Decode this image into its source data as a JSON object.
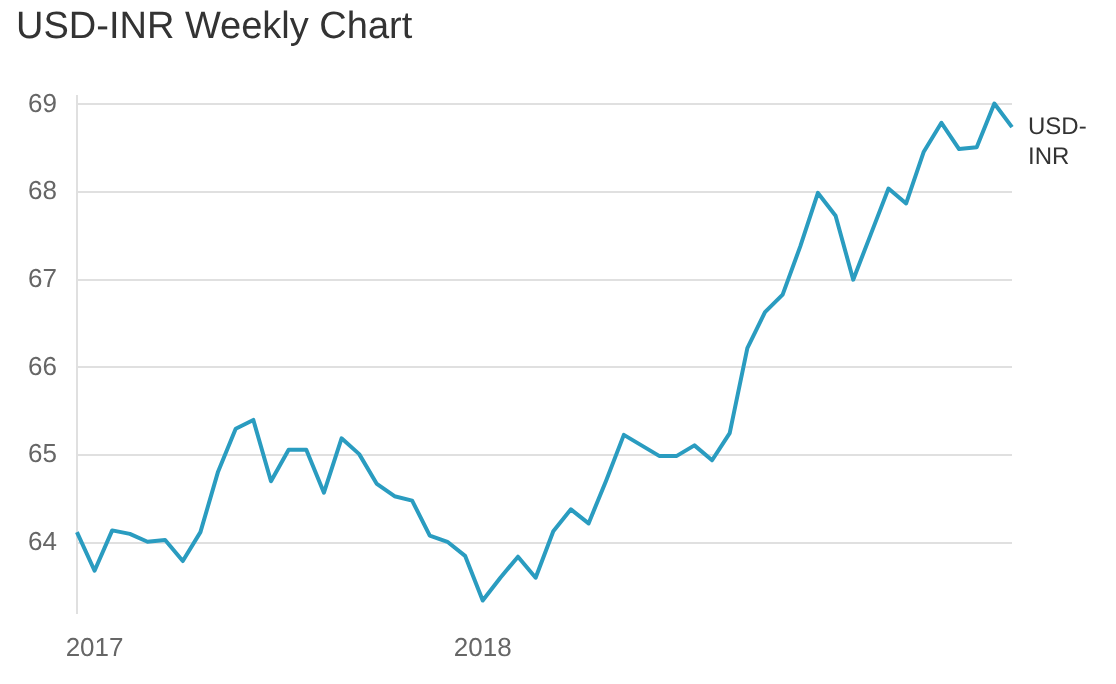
{
  "chart_data": {
    "type": "line",
    "title": "USD-INR Weekly Chart",
    "categories": [
      null,
      "2017",
      null,
      null,
      null,
      null,
      null,
      null,
      null,
      null,
      null,
      null,
      null,
      null,
      null,
      null,
      null,
      null,
      null,
      null,
      null,
      null,
      null,
      "2018",
      null,
      null,
      null,
      null,
      null,
      null,
      null,
      null,
      null,
      null,
      null,
      null,
      null,
      null,
      null,
      null,
      null,
      null,
      null,
      null,
      null,
      null,
      null,
      null,
      null,
      null,
      null,
      null,
      null,
      null
    ],
    "series": [
      {
        "name": "USD-INR",
        "color": "#2a9cc0",
        "values": [
          64.12,
          63.68,
          64.14,
          64.1,
          64.01,
          64.03,
          63.79,
          64.12,
          64.81,
          65.3,
          65.4,
          64.7,
          65.06,
          65.06,
          64.57,
          65.19,
          65.01,
          64.67,
          64.53,
          64.48,
          64.08,
          64.01,
          63.85,
          63.34,
          63.6,
          63.84,
          63.6,
          64.13,
          64.38,
          64.22,
          64.71,
          65.23,
          65.11,
          64.99,
          64.99,
          65.11,
          64.94,
          65.25,
          66.22,
          66.63,
          66.83,
          67.38,
          67.99,
          67.73,
          67.0,
          67.52,
          68.04,
          67.87,
          68.46,
          68.79,
          68.49,
          68.51,
          69.01,
          68.74
        ]
      }
    ],
    "ylim": [
      63.2,
      69.1
    ],
    "yticks": [
      64,
      65,
      66,
      67,
      68,
      69
    ],
    "grid": "y",
    "legend": false,
    "marker": "none",
    "line_style": "solid"
  }
}
